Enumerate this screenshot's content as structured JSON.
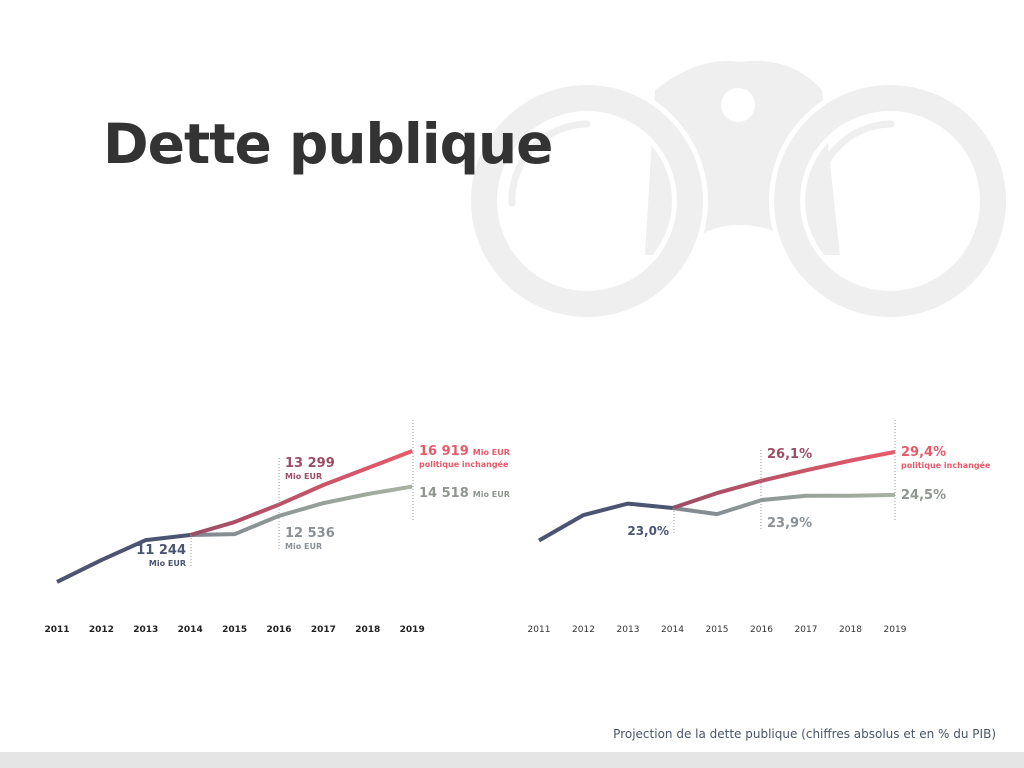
{
  "title": "Dette publique",
  "caption": "Projection de la dette publique (chiffres absolus et en % du PIB)",
  "colors": {
    "historical": "#4b5571",
    "unchanged_start": "#9c4d66",
    "unchanged_end": "#e85a6a",
    "other_start": "#7f868f",
    "other_end": "#a9b2a2",
    "watermark": "#efefef"
  },
  "icons": {
    "watermark": "binoculars-icon"
  },
  "chart_data": [
    {
      "type": "line",
      "unit": "Mio EUR",
      "categories": [
        "2011",
        "2012",
        "2013",
        "2014",
        "2015",
        "2016",
        "2017",
        "2018",
        "2019"
      ],
      "series": [
        {
          "key": "historical",
          "values": [
            8070,
            9550,
            10900,
            11244,
            null,
            null,
            null,
            null,
            null
          ]
        },
        {
          "key": "unchanged",
          "name": "politique inchangée",
          "values": [
            null,
            null,
            null,
            11244,
            12120,
            13299,
            14625,
            15770,
            16919
          ]
        },
        {
          "key": "other",
          "values": [
            null,
            null,
            null,
            11244,
            11300,
            12536,
            13400,
            14015,
            14518
          ]
        }
      ],
      "annotations": {
        "a2014": {
          "value": "11 244",
          "unit": "Mio EUR"
        },
        "a2016_high": {
          "value": "13 299",
          "unit": "Mio EUR"
        },
        "a2016_low": {
          "value": "12 536",
          "unit": "Mio EUR"
        },
        "a2019_high": {
          "value": "16 919",
          "unit": "Mio EUR",
          "note": "politique inchangée"
        },
        "a2019_low": {
          "value": "14 518",
          "unit": "Mio EUR"
        }
      }
    },
    {
      "type": "line",
      "unit": "% du PIB",
      "categories": [
        "2011",
        "2012",
        "2013",
        "2014",
        "2015",
        "2016",
        "2017",
        "2018",
        "2019"
      ],
      "series": [
        {
          "key": "historical",
          "values": [
            19.3,
            22.2,
            23.5,
            23.0,
            null,
            null,
            null,
            null,
            null
          ]
        },
        {
          "key": "unchanged",
          "name": "politique inchangée",
          "values": [
            null,
            null,
            null,
            23.0,
            24.7,
            26.1,
            27.3,
            28.4,
            29.4
          ]
        },
        {
          "key": "other",
          "values": [
            null,
            null,
            null,
            23.0,
            22.3,
            23.9,
            24.4,
            24.4,
            24.5
          ]
        }
      ],
      "annotations": {
        "a2014": {
          "value": "23,0%"
        },
        "a2016_high": {
          "value": "26,1%"
        },
        "a2016_low": {
          "value": "23,9%"
        },
        "a2019_high": {
          "value": "29,4%",
          "note": "politique inchangée"
        },
        "a2019_low": {
          "value": "24,5%"
        }
      }
    }
  ]
}
